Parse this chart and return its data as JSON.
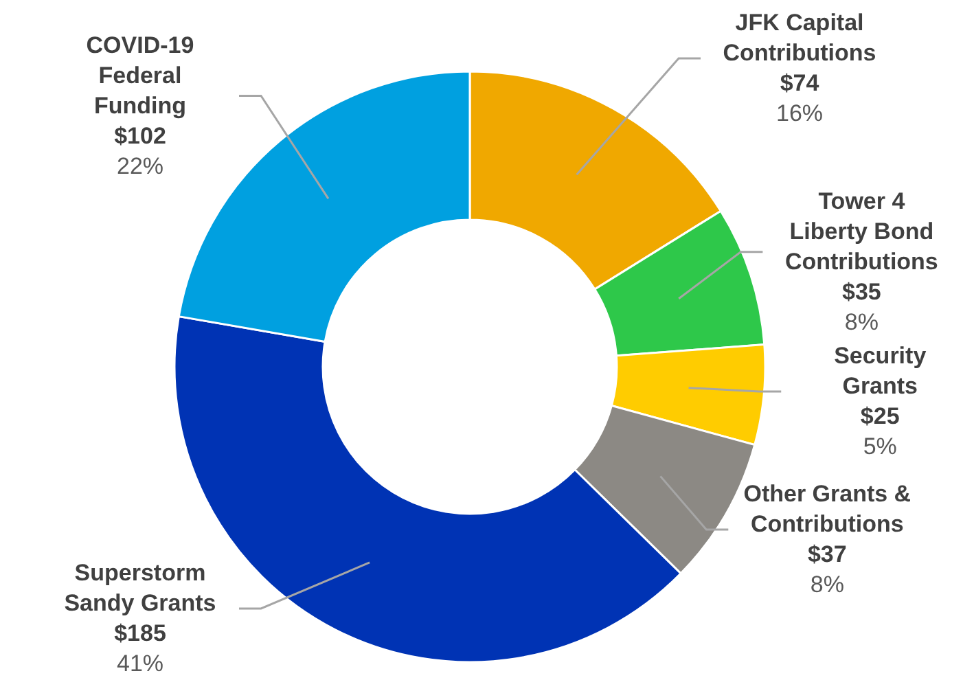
{
  "chart_data": {
    "type": "donut",
    "categories": [
      "JFK Capital Contributions",
      "Tower 4 Liberty Bond Contributions",
      "Security Grants",
      "Other Grants & Contributions",
      "Superstorm Sandy Grants",
      "COVID-19 Federal Funding"
    ],
    "values": [
      74,
      35,
      25,
      37,
      185,
      102
    ],
    "colors": [
      "#f0a800",
      "#2ec84a",
      "#ffcc00",
      "#8c8984",
      "#0033b4",
      "#00a0e0"
    ],
    "value_labels": [
      "$74",
      "$35",
      "$25",
      "$37",
      "$185",
      "$102"
    ],
    "annotations": [
      "16%",
      "8%",
      "5%",
      "8%",
      "41%",
      "22%"
    ],
    "legend": false
  }
}
